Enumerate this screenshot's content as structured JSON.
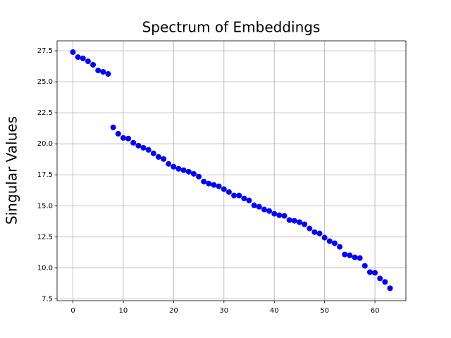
{
  "chart_data": {
    "type": "scatter",
    "title": "Spectrum of Embeddings",
    "y_label": "Singular Values",
    "x": [
      0,
      1,
      2,
      3,
      4,
      5,
      6,
      7,
      8,
      9,
      10,
      11,
      12,
      13,
      14,
      15,
      16,
      17,
      18,
      19,
      20,
      21,
      22,
      23,
      24,
      25,
      26,
      27,
      28,
      29,
      30,
      31,
      32,
      33,
      34,
      35,
      36,
      37,
      38,
      39,
      40,
      41,
      42,
      43,
      44,
      45,
      46,
      47,
      48,
      49,
      50,
      51,
      52,
      53,
      54,
      55,
      56,
      57,
      58,
      59,
      60,
      61,
      62,
      63
    ],
    "values": [
      27.39,
      26.99,
      26.88,
      26.65,
      26.37,
      25.91,
      25.8,
      25.63,
      21.32,
      20.81,
      20.47,
      20.42,
      20.08,
      19.85,
      19.68,
      19.51,
      19.23,
      18.94,
      18.77,
      18.38,
      18.15,
      17.98,
      17.87,
      17.75,
      17.58,
      17.36,
      16.96,
      16.79,
      16.68,
      16.57,
      16.34,
      16.11,
      15.83,
      15.83,
      15.6,
      15.43,
      15.04,
      14.92,
      14.7,
      14.58,
      14.36,
      14.24,
      14.19,
      13.85,
      13.79,
      13.68,
      13.51,
      13.17,
      12.88,
      12.77,
      12.43,
      12.15,
      11.98,
      11.69,
      11.07,
      11.01,
      10.84,
      10.79,
      10.16,
      9.65,
      9.6,
      9.14,
      8.86,
      8.35
    ],
    "color": "#0000ff",
    "xlim": [
      -3.15,
      66.15
    ],
    "xticks": [
      0,
      10,
      20,
      30,
      40,
      50,
      60
    ],
    "ylim": [
      7.35,
      28.3
    ],
    "yticks": [
      7.5,
      {
        "value": 10,
        "label": "10.0"
      },
      12.5,
      {
        "value": 15,
        "label": "15.0"
      },
      17.5,
      {
        "value": 20,
        "label": "20.0"
      },
      22.5,
      {
        "value": 25,
        "label": "25.0"
      },
      27.5
    ],
    "grid": true
  }
}
